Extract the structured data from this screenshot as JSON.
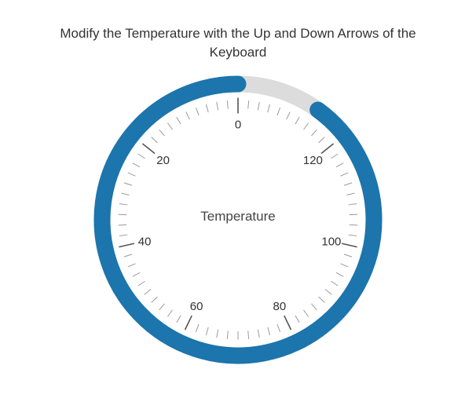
{
  "page": {
    "background": "#ffffff",
    "title": "Modify the Temperature with the Up and Down Arrows of the\nKeyboard",
    "title_color": "#333333"
  },
  "chart_data": {
    "type": "gauge",
    "widget": "circular-knob",
    "title": "Modify the Temperature with the Up and Down Arrows of the Keyboard",
    "center_label": "Temperature",
    "min": 0,
    "max": 140,
    "value": 126,
    "tick_step": 2,
    "label_step": 20,
    "scale_labels": [
      0,
      20,
      40,
      60,
      80,
      100,
      120
    ],
    "direction": "counterclockwise",
    "zero_position": "top",
    "legend": "none",
    "colors": {
      "progress": "#1c75ac",
      "track": "#dcdcdc",
      "major_tick": "#555555",
      "minor_tick": "#9a9a9a",
      "scale_label": "#333333",
      "center_label": "#444444"
    }
  }
}
